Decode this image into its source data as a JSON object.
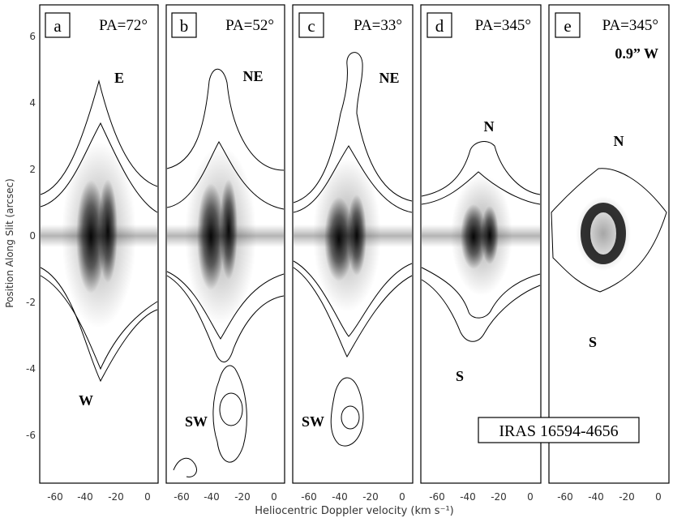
{
  "figure": {
    "object_label": "IRAS 16594-4656",
    "xlabel": "Heliocentric Doppler velocity (km s⁻¹)",
    "ylabel": "Position Along Slit (arcsec)",
    "x_ticks": [
      "-60",
      "-40",
      "-20",
      "0"
    ],
    "y_ticks": [
      "6",
      "4",
      "2",
      "0",
      "-2",
      "-4",
      "-6"
    ]
  },
  "panels": [
    {
      "letter": "a",
      "pa": "PA=72°",
      "extra": "",
      "labels": [
        "E",
        "W"
      ]
    },
    {
      "letter": "b",
      "pa": "PA=52°",
      "extra": "",
      "labels": [
        "NE",
        "SW"
      ]
    },
    {
      "letter": "c",
      "pa": "PA=33°",
      "extra": "",
      "labels": [
        "NE",
        "SW"
      ]
    },
    {
      "letter": "d",
      "pa": "PA=345°",
      "extra": "",
      "labels": [
        "N",
        "S"
      ]
    },
    {
      "letter": "e",
      "pa": "PA=345°",
      "extra": "0.9” W",
      "labels": [
        "N",
        "S"
      ]
    }
  ]
}
